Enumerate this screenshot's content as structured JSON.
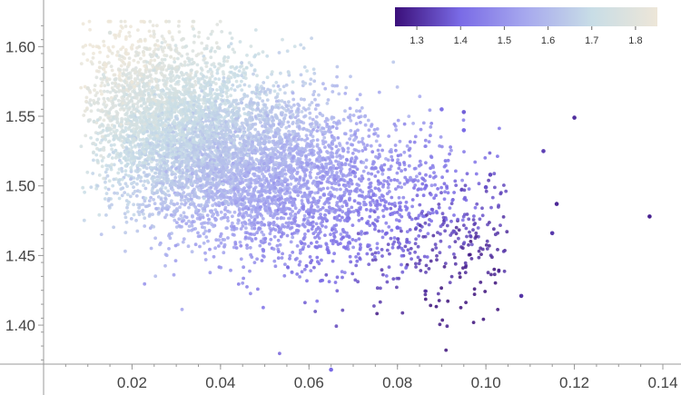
{
  "chart_data": {
    "type": "scatter",
    "title": "",
    "xlabel": "",
    "ylabel": "",
    "xlim": [
      0.0,
      0.14
    ],
    "ylim": [
      1.372,
      1.625
    ],
    "xticks": [
      0.02,
      0.04,
      0.06,
      0.08,
      0.1,
      0.12,
      0.14
    ],
    "xtick_labels": [
      "0.02",
      "0.04",
      "0.06",
      "0.08",
      "0.10",
      "0.12",
      "0.14"
    ],
    "yticks": [
      1.4,
      1.45,
      1.5,
      1.55,
      1.6
    ],
    "ytick_labels": [
      "1.40",
      "1.45",
      "1.50",
      "1.55",
      "1.60"
    ],
    "grid": false,
    "color_variable_range": [
      1.25,
      1.85
    ],
    "colorbar": {
      "placement": "top-right",
      "ticks": [
        1.3,
        1.4,
        1.5,
        1.6,
        1.7,
        1.8
      ],
      "tick_labels": [
        "1.3",
        "1.4",
        "1.5",
        "1.6",
        "1.7",
        "1.8"
      ]
    },
    "colormap": [
      "#3b0f7a",
      "#7a6be6",
      "#a7a9ee",
      "#c8dde6",
      "#ede6d8"
    ],
    "point_color": "#8f7be8",
    "representative_points": [
      [
        0.137,
        1.478,
        1.28
      ],
      [
        0.12,
        1.549,
        1.3
      ],
      [
        0.116,
        1.487,
        1.29
      ],
      [
        0.108,
        1.421,
        1.31
      ],
      [
        0.115,
        1.466,
        1.32
      ],
      [
        0.101,
        1.508,
        1.35
      ],
      [
        0.113,
        1.525,
        1.33
      ],
      [
        0.065,
        1.368,
        1.4
      ],
      [
        0.09,
        1.555,
        1.42
      ],
      [
        0.095,
        1.54,
        1.4
      ],
      [
        0.095,
        1.553,
        1.38
      ],
      [
        0.1,
        1.499,
        1.36
      ],
      [
        0.01,
        1.57,
        1.8
      ],
      [
        0.015,
        1.61,
        1.78
      ],
      [
        0.02,
        1.55,
        1.72
      ],
      [
        0.03,
        1.52,
        1.62
      ],
      [
        0.045,
        1.49,
        1.52
      ],
      [
        0.06,
        1.48,
        1.45
      ],
      [
        0.07,
        1.51,
        1.44
      ],
      [
        0.08,
        1.47,
        1.4
      ]
    ]
  }
}
